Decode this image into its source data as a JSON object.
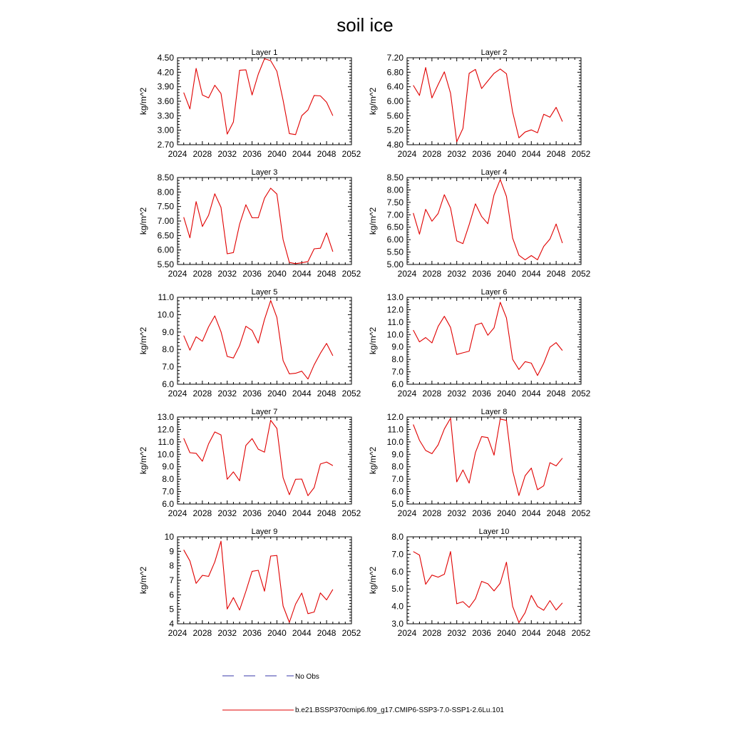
{
  "title": "soil ice",
  "colors": {
    "model": "#e00000",
    "obs": "#3a3aa8",
    "axis": "#000000"
  },
  "legend": {
    "obs_label": "No Obs",
    "model_label": "b.e21.BSSP370cmip6.f09_g17.CMIP6-SSP3-7.0-SSP1-2.6Lu.101"
  },
  "chart_data": [
    {
      "type": "line",
      "title": "Layer 1",
      "ylabel": "kg/m^2",
      "xlim": [
        2024,
        2052
      ],
      "ylim": [
        2.7,
        4.5
      ],
      "xticks": [
        "2024",
        "2028",
        "2032",
        "2036",
        "2040",
        "2044",
        "2048",
        "2052"
      ],
      "yticks": [
        "2.70",
        "3.00",
        "3.30",
        "3.60",
        "3.90",
        "4.20",
        "4.50"
      ],
      "x": [
        2025,
        2026,
        2027,
        2028,
        2029,
        2030,
        2031,
        2032,
        2033,
        2034,
        2035,
        2036,
        2037,
        2038,
        2039,
        2040,
        2041,
        2042,
        2043,
        2044,
        2045,
        2046,
        2047,
        2048,
        2049
      ],
      "values": [
        3.78,
        3.44,
        4.28,
        3.73,
        3.67,
        3.93,
        3.76,
        2.92,
        3.17,
        4.24,
        4.25,
        3.73,
        4.16,
        4.48,
        4.44,
        4.22,
        3.62,
        2.93,
        2.91,
        3.3,
        3.42,
        3.72,
        3.71,
        3.58,
        3.3
      ]
    },
    {
      "type": "line",
      "title": "Layer 2",
      "ylabel": "kg/m^2",
      "xlim": [
        2024,
        2052
      ],
      "ylim": [
        4.8,
        7.2
      ],
      "xticks": [
        "2024",
        "2028",
        "2032",
        "2036",
        "2040",
        "2044",
        "2048",
        "2052"
      ],
      "yticks": [
        "4.80",
        "5.20",
        "5.60",
        "6.00",
        "6.40",
        "6.80",
        "7.20"
      ],
      "x": [
        2025,
        2026,
        2027,
        2028,
        2029,
        2030,
        2031,
        2032,
        2033,
        2034,
        2035,
        2036,
        2037,
        2038,
        2039,
        2040,
        2041,
        2042,
        2043,
        2044,
        2045,
        2046,
        2047,
        2048,
        2049
      ],
      "values": [
        6.44,
        6.16,
        6.93,
        6.09,
        6.46,
        6.81,
        6.22,
        4.88,
        5.25,
        6.77,
        6.88,
        6.35,
        6.56,
        6.77,
        6.89,
        6.76,
        5.7,
        4.99,
        5.15,
        5.21,
        5.13,
        5.64,
        5.56,
        5.83,
        5.44
      ]
    },
    {
      "type": "line",
      "title": "Layer 3",
      "ylabel": "kg/m^2",
      "xlim": [
        2024,
        2052
      ],
      "ylim": [
        5.5,
        8.5
      ],
      "xticks": [
        "2024",
        "2028",
        "2032",
        "2036",
        "2040",
        "2044",
        "2048",
        "2052"
      ],
      "yticks": [
        "5.50",
        "6.00",
        "6.50",
        "7.00",
        "7.50",
        "8.00",
        "8.50"
      ],
      "x": [
        2025,
        2026,
        2027,
        2028,
        2029,
        2030,
        2031,
        2032,
        2033,
        2034,
        2035,
        2036,
        2037,
        2038,
        2039,
        2040,
        2041,
        2042,
        2043,
        2044,
        2045,
        2046,
        2047,
        2048,
        2049
      ],
      "values": [
        7.13,
        6.42,
        7.67,
        6.81,
        7.2,
        7.94,
        7.47,
        5.87,
        5.91,
        6.89,
        7.56,
        7.11,
        7.11,
        7.79,
        8.13,
        7.93,
        6.36,
        5.57,
        5.53,
        5.56,
        5.6,
        6.04,
        6.06,
        6.59,
        5.94
      ]
    },
    {
      "type": "line",
      "title": "Layer 4",
      "ylabel": "kg/m^2",
      "xlim": [
        2024,
        2052
      ],
      "ylim": [
        5.0,
        8.5
      ],
      "xticks": [
        "2024",
        "2028",
        "2032",
        "2036",
        "2040",
        "2044",
        "2048",
        "2052"
      ],
      "yticks": [
        "5.00",
        "5.50",
        "6.00",
        "6.50",
        "7.00",
        "7.50",
        "8.00",
        "8.50"
      ],
      "x": [
        2025,
        2026,
        2027,
        2028,
        2029,
        2030,
        2031,
        2032,
        2033,
        2034,
        2035,
        2036,
        2037,
        2038,
        2039,
        2040,
        2041,
        2042,
        2043,
        2044,
        2045,
        2046,
        2047,
        2048,
        2049
      ],
      "values": [
        7.07,
        6.22,
        7.22,
        6.74,
        7.05,
        7.81,
        7.27,
        5.95,
        5.84,
        6.6,
        7.44,
        6.93,
        6.64,
        7.8,
        8.42,
        7.74,
        6.06,
        5.37,
        5.19,
        5.36,
        5.19,
        5.73,
        6.02,
        6.63,
        5.86
      ]
    },
    {
      "type": "line",
      "title": "Layer 5",
      "ylabel": "kg/m^2",
      "xlim": [
        2024,
        2052
      ],
      "ylim": [
        6.0,
        11.0
      ],
      "xticks": [
        "2024",
        "2028",
        "2032",
        "2036",
        "2040",
        "2044",
        "2048",
        "2052"
      ],
      "yticks": [
        "6.0",
        "7.0",
        "8.0",
        "9.0",
        "10.0",
        "11.0"
      ],
      "x": [
        2025,
        2026,
        2027,
        2028,
        2029,
        2030,
        2031,
        2032,
        2033,
        2034,
        2035,
        2036,
        2037,
        2038,
        2039,
        2040,
        2041,
        2042,
        2043,
        2044,
        2045,
        2046,
        2047,
        2048,
        2049
      ],
      "values": [
        8.8,
        7.96,
        8.73,
        8.47,
        9.3,
        9.93,
        9.02,
        7.6,
        7.51,
        8.22,
        9.33,
        9.1,
        8.37,
        9.72,
        10.81,
        9.84,
        7.36,
        6.6,
        6.63,
        6.75,
        6.3,
        7.12,
        7.78,
        8.35,
        7.64
      ]
    },
    {
      "type": "line",
      "title": "Layer 6",
      "ylabel": "kg/m^2",
      "xlim": [
        2024,
        2052
      ],
      "ylim": [
        6.0,
        13.0
      ],
      "xticks": [
        "2024",
        "2028",
        "2032",
        "2036",
        "2040",
        "2044",
        "2048",
        "2052"
      ],
      "yticks": [
        "6.0",
        "7.0",
        "8.0",
        "9.0",
        "10.0",
        "11.0",
        "12.0",
        "13.0"
      ],
      "x": [
        2025,
        2026,
        2027,
        2028,
        2029,
        2030,
        2031,
        2032,
        2033,
        2034,
        2035,
        2036,
        2037,
        2038,
        2039,
        2040,
        2041,
        2042,
        2043,
        2044,
        2045,
        2046,
        2047,
        2048,
        2049
      ],
      "values": [
        10.36,
        9.41,
        9.76,
        9.33,
        10.66,
        11.47,
        10.58,
        8.4,
        8.53,
        8.66,
        10.76,
        10.93,
        9.94,
        10.54,
        12.6,
        11.34,
        8.0,
        7.19,
        7.82,
        7.7,
        6.7,
        7.69,
        8.98,
        9.35,
        8.72
      ]
    },
    {
      "type": "line",
      "title": "Layer 7",
      "ylabel": "kg/m^2",
      "xlim": [
        2024,
        2052
      ],
      "ylim": [
        6.0,
        13.0
      ],
      "xticks": [
        "2024",
        "2028",
        "2032",
        "2036",
        "2040",
        "2044",
        "2048",
        "2052"
      ],
      "yticks": [
        "6.0",
        "7.0",
        "8.0",
        "9.0",
        "10.0",
        "11.0",
        "12.0",
        "13.0"
      ],
      "x": [
        2025,
        2026,
        2027,
        2028,
        2029,
        2030,
        2031,
        2032,
        2033,
        2034,
        2035,
        2036,
        2037,
        2038,
        2039,
        2040,
        2041,
        2042,
        2043,
        2044,
        2045,
        2046,
        2047,
        2048,
        2049
      ],
      "values": [
        11.29,
        10.13,
        10.08,
        9.44,
        10.85,
        11.8,
        11.56,
        7.99,
        8.59,
        7.87,
        10.71,
        11.27,
        10.41,
        10.17,
        12.74,
        12.08,
        8.12,
        6.75,
        7.99,
        8.01,
        6.67,
        7.32,
        9.22,
        9.38,
        9.09
      ]
    },
    {
      "type": "line",
      "title": "Layer 8",
      "ylabel": "kg/m^2",
      "xlim": [
        2024,
        2052
      ],
      "ylim": [
        5.0,
        12.0
      ],
      "xticks": [
        "2024",
        "2028",
        "2032",
        "2036",
        "2040",
        "2044",
        "2048",
        "2052"
      ],
      "yticks": [
        "5.0",
        "6.0",
        "7.0",
        "8.0",
        "9.0",
        "10.0",
        "11.0",
        "12.0"
      ],
      "x": [
        2025,
        2026,
        2027,
        2028,
        2029,
        2030,
        2031,
        2032,
        2033,
        2034,
        2035,
        2036,
        2037,
        2038,
        2039,
        2040,
        2041,
        2042,
        2043,
        2044,
        2045,
        2046,
        2047,
        2048,
        2049
      ],
      "values": [
        11.4,
        10.13,
        9.31,
        9.05,
        9.76,
        11.04,
        11.91,
        6.78,
        7.74,
        6.68,
        9.14,
        10.43,
        10.35,
        8.93,
        11.84,
        11.73,
        7.67,
        5.68,
        7.27,
        7.89,
        6.15,
        6.47,
        8.33,
        8.07,
        8.69
      ]
    },
    {
      "type": "line",
      "title": "Layer 9",
      "ylabel": "kg/m^2",
      "xlim": [
        2024,
        2052
      ],
      "ylim": [
        4,
        10
      ],
      "xticks": [
        "2024",
        "2028",
        "2032",
        "2036",
        "2040",
        "2044",
        "2048",
        "2052"
      ],
      "yticks": [
        "4",
        "5",
        "6",
        "7",
        "8",
        "9",
        "10"
      ],
      "x": [
        2025,
        2026,
        2027,
        2028,
        2029,
        2030,
        2031,
        2032,
        2033,
        2034,
        2035,
        2036,
        2037,
        2038,
        2039,
        2040,
        2041,
        2042,
        2043,
        2044,
        2045,
        2046,
        2047,
        2048,
        2049
      ],
      "values": [
        9.1,
        8.34,
        6.79,
        7.34,
        7.27,
        8.27,
        9.7,
        5.02,
        5.81,
        4.95,
        6.24,
        7.62,
        7.69,
        6.25,
        8.67,
        8.71,
        5.23,
        4.1,
        5.35,
        6.12,
        4.7,
        4.81,
        6.13,
        5.65,
        6.37
      ]
    },
    {
      "type": "line",
      "title": "Layer 10",
      "ylabel": "kg/m^2",
      "xlim": [
        2024,
        2052
      ],
      "ylim": [
        3.0,
        8.0
      ],
      "xticks": [
        "2024",
        "2028",
        "2032",
        "2036",
        "2040",
        "2044",
        "2048",
        "2052"
      ],
      "yticks": [
        "3.0",
        "4.0",
        "5.0",
        "6.0",
        "7.0",
        "8.0"
      ],
      "x": [
        2025,
        2026,
        2027,
        2028,
        2029,
        2030,
        2031,
        2032,
        2033,
        2034,
        2035,
        2036,
        2037,
        2038,
        2039,
        2040,
        2041,
        2042,
        2043,
        2044,
        2045,
        2046,
        2047,
        2048,
        2049
      ],
      "values": [
        7.15,
        6.95,
        5.27,
        5.8,
        5.68,
        5.85,
        7.15,
        4.15,
        4.27,
        3.94,
        4.44,
        5.44,
        5.3,
        4.89,
        5.33,
        6.54,
        4.0,
        3.07,
        3.64,
        4.63,
        3.99,
        3.78,
        4.33,
        3.79,
        4.2
      ]
    }
  ]
}
